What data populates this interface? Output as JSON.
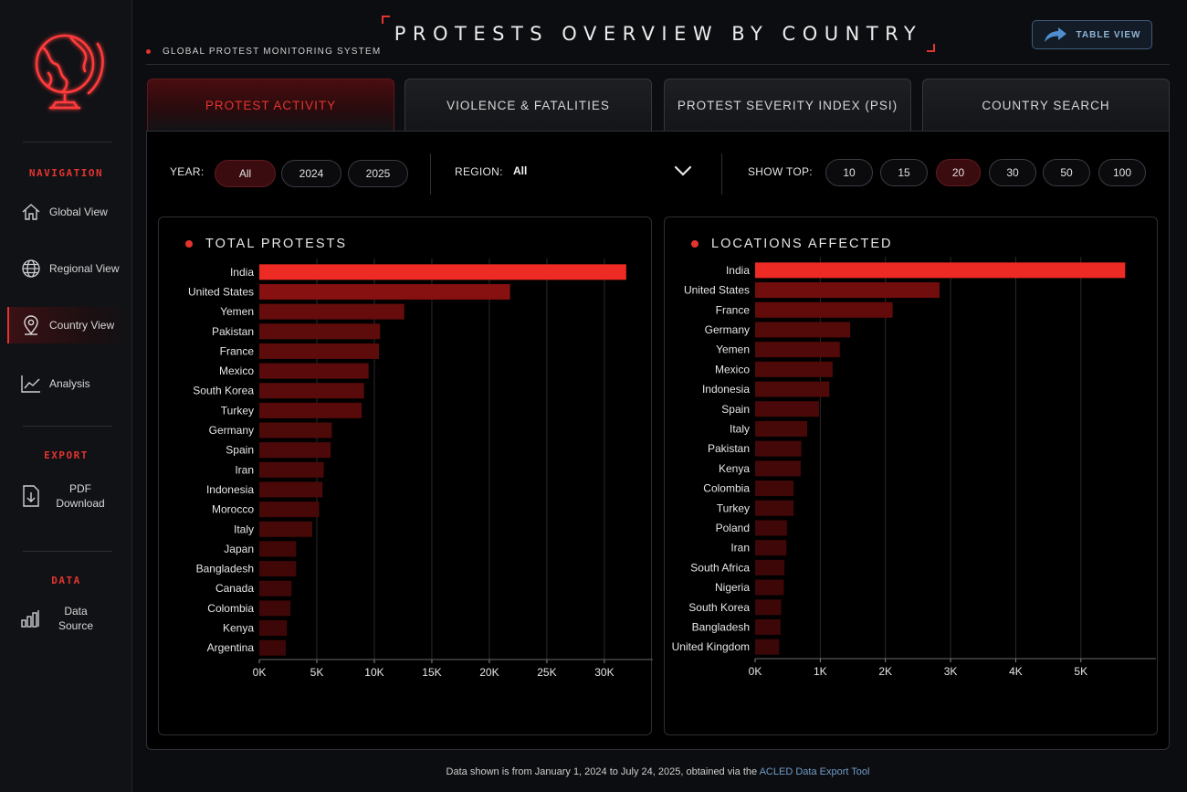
{
  "sidebar": {
    "sections": [
      {
        "heading": "NAVIGATION",
        "items": [
          {
            "label": "Global View",
            "icon": "home-icon"
          },
          {
            "label": "Regional View",
            "icon": "globe-icon"
          },
          {
            "label": "Country View",
            "icon": "map-pin-icon"
          },
          {
            "label": "Analysis",
            "icon": "line-chart-icon"
          }
        ]
      },
      {
        "heading": "EXPORT",
        "items": [
          {
            "label": "PDF Download",
            "icon": "download-file-icon"
          }
        ]
      },
      {
        "heading": "DATA",
        "items": [
          {
            "label": "Data Source",
            "icon": "bar-chart-icon"
          }
        ]
      }
    ],
    "active_item": "Country View"
  },
  "header": {
    "system_label": "GLOBAL PROTEST MONITORING SYSTEM",
    "title": "PROTESTS OVERVIEW BY COUNTRY",
    "table_view_label": "TABLE VIEW"
  },
  "tabs": [
    {
      "label": "PROTEST ACTIVITY",
      "active": true
    },
    {
      "label": "VIOLENCE & FATALITIES",
      "active": false
    },
    {
      "label": "PROTEST SEVERITY INDEX (PSI)",
      "active": false
    },
    {
      "label": "COUNTRY SEARCH",
      "active": false
    }
  ],
  "filters": {
    "year_label": "YEAR:",
    "year_options": [
      "All",
      "2024",
      "2025"
    ],
    "year_selected": "All",
    "region_label": "REGION:",
    "region_value": "All",
    "show_top_label": "SHOW TOP:",
    "show_top_options": [
      "10",
      "15",
      "20",
      "30",
      "50",
      "100"
    ],
    "show_top_selected": "20"
  },
  "colors": {
    "accent": "#e3342f",
    "background": "#000000",
    "link": "#6f9cc9"
  },
  "chart_data": [
    {
      "type": "bar",
      "orientation": "horizontal",
      "title": "TOTAL PROTESTS",
      "categories": [
        "India",
        "United States",
        "Yemen",
        "Pakistan",
        "France",
        "Mexico",
        "South Korea",
        "Turkey",
        "Germany",
        "Spain",
        "Iran",
        "Indonesia",
        "Morocco",
        "Italy",
        "Japan",
        "Bangladesh",
        "Canada",
        "Colombia",
        "Kenya",
        "Argentina"
      ],
      "values": [
        31900,
        21800,
        12600,
        10500,
        10400,
        9500,
        9100,
        8900,
        6300,
        6200,
        5600,
        5500,
        5200,
        4600,
        3200,
        3200,
        2800,
        2700,
        2400,
        2300
      ],
      "xlim": [
        0,
        33500
      ],
      "xticks": [
        0,
        5000,
        10000,
        15000,
        20000,
        25000,
        30000
      ],
      "xtick_labels": [
        "0K",
        "5K",
        "10K",
        "15K",
        "20K",
        "25K",
        "30K"
      ],
      "grid": true
    },
    {
      "type": "bar",
      "orientation": "horizontal",
      "title": "LOCATIONS AFFECTED",
      "categories": [
        "India",
        "United States",
        "France",
        "Germany",
        "Yemen",
        "Mexico",
        "Indonesia",
        "Spain",
        "Italy",
        "Pakistan",
        "Kenya",
        "Colombia",
        "Turkey",
        "Poland",
        "Iran",
        "South Africa",
        "Nigeria",
        "South Korea",
        "Bangladesh",
        "United Kingdom"
      ],
      "values": [
        5680,
        2830,
        2110,
        1460,
        1300,
        1190,
        1140,
        980,
        800,
        710,
        700,
        590,
        590,
        490,
        480,
        450,
        440,
        400,
        390,
        370
      ],
      "xlim": [
        0,
        5900
      ],
      "xticks": [
        0,
        1000,
        2000,
        3000,
        4000,
        5000
      ],
      "xtick_labels": [
        "0K",
        "1K",
        "2K",
        "3K",
        "4K",
        "5K"
      ],
      "grid": true
    }
  ],
  "footer": {
    "text": "Data shown is from January 1, 2024 to July 24, 2025, obtained via the ",
    "link_text": "ACLED Data Export Tool"
  }
}
